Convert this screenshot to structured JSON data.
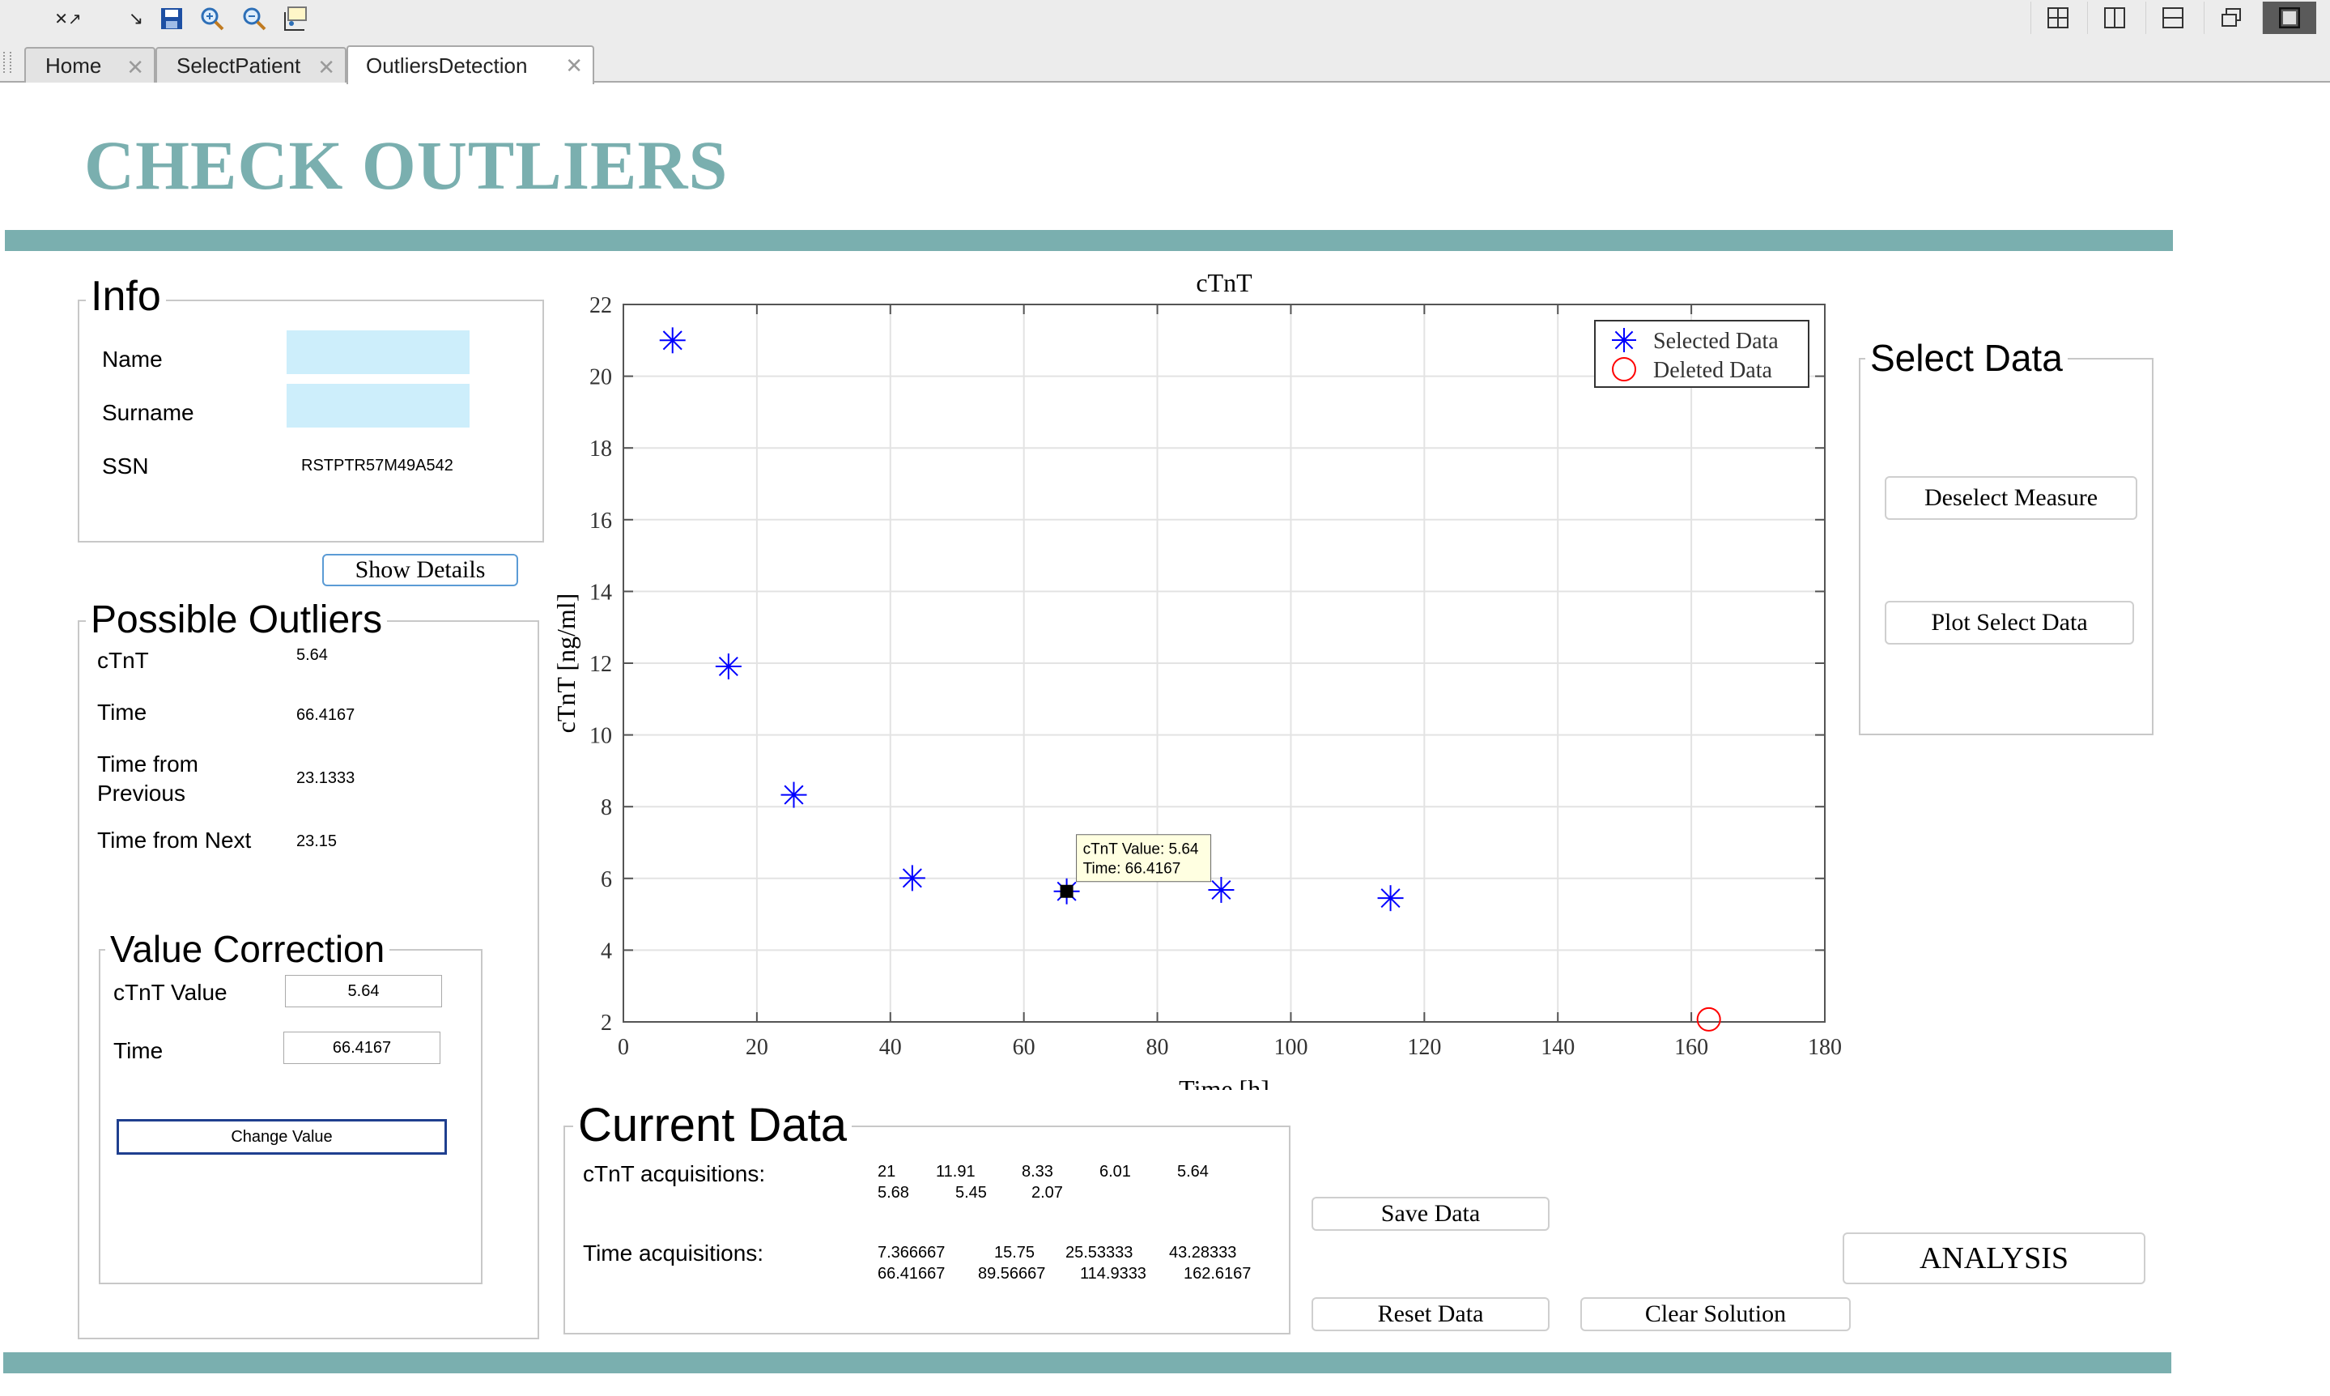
{
  "toolbar": {
    "icons": [
      "close-restore-icon",
      "arrow-icon",
      "save-icon",
      "zoom-in-icon",
      "zoom-out-icon",
      "data-cursor-icon"
    ],
    "layout_icons": [
      "grid-2x2-icon",
      "split-vertical-icon",
      "split-horizontal-icon",
      "float-icon",
      "single-pane-icon"
    ]
  },
  "tabs": [
    {
      "label": "Home"
    },
    {
      "label": "SelectPatient"
    },
    {
      "label": "OutliersDetection"
    }
  ],
  "page": {
    "title": "CHECK OUTLIERS"
  },
  "info": {
    "title": "Info",
    "name_label": "Name",
    "name_value": "",
    "surname_label": "Surname",
    "surname_value": "",
    "ssn_label": "SSN",
    "ssn_value": "RSTPTR57M49A542",
    "show_details": "Show Details"
  },
  "outliers": {
    "title": "Possible Outliers",
    "ctnt_label": "cTnT",
    "ctnt_value": "5.64",
    "time_label": "Time",
    "time_value": "66.4167",
    "prev_label_1": "Time from",
    "prev_label_2": "Previous",
    "prev_value": "23.1333",
    "next_label": "Time from Next",
    "next_value": "23.15"
  },
  "correction": {
    "title": "Value Correction",
    "ctnt_label": "cTnT Value",
    "ctnt_value": "5.64",
    "time_label": "Time",
    "time_value": "66.4167",
    "change_button": "Change Value"
  },
  "select_data": {
    "title": "Select Data",
    "deselect_button": "Deselect Measure",
    "plot_button": "Plot Select Data"
  },
  "current_data": {
    "title": "Current Data",
    "ctnt_label": "cTnT acquisitions:",
    "ctnt_row1": [
      "21",
      "11.91",
      "8.33",
      "6.01",
      "5.64"
    ],
    "ctnt_row2": [
      "5.68",
      "5.45",
      "2.07"
    ],
    "time_label": "Time acquisitions:",
    "time_row1": [
      "7.366667",
      "15.75",
      "25.53333",
      "43.28333"
    ],
    "time_row2": [
      "66.41667",
      "89.56667",
      "114.9333",
      "162.6167"
    ]
  },
  "buttons": {
    "save": "Save Data",
    "reset": "Reset Data",
    "clear": "Clear Solution",
    "analysis": "ANALYSIS"
  },
  "chart_data": {
    "type": "scatter",
    "title": "cTnT",
    "xlabel": "Time [h]",
    "ylabel": "cTnT [ng/ml]",
    "xlim": [
      0,
      180
    ],
    "ylim": [
      2,
      22
    ],
    "xticks": [
      0,
      20,
      40,
      60,
      80,
      100,
      120,
      140,
      160,
      180
    ],
    "yticks": [
      2,
      4,
      6,
      8,
      10,
      12,
      14,
      16,
      18,
      20,
      22
    ],
    "grid": true,
    "legend_position": "top-right",
    "series": [
      {
        "name": "Selected Data",
        "marker": "asterisk",
        "color": "#0000ff",
        "x": [
          7.366667,
          15.75,
          25.53333,
          43.28333,
          66.41667,
          89.56667,
          114.9333
        ],
        "y": [
          21,
          11.91,
          8.33,
          6.01,
          5.64,
          5.68,
          5.45
        ]
      },
      {
        "name": "Deleted Data",
        "marker": "circle",
        "color": "#ff0000",
        "x": [
          162.6167
        ],
        "y": [
          2.07
        ]
      }
    ],
    "datatip": {
      "x": 66.41667,
      "y": 5.64,
      "line1": "cTnT Value: 5.64",
      "line2": "Time: 66.4167"
    }
  }
}
